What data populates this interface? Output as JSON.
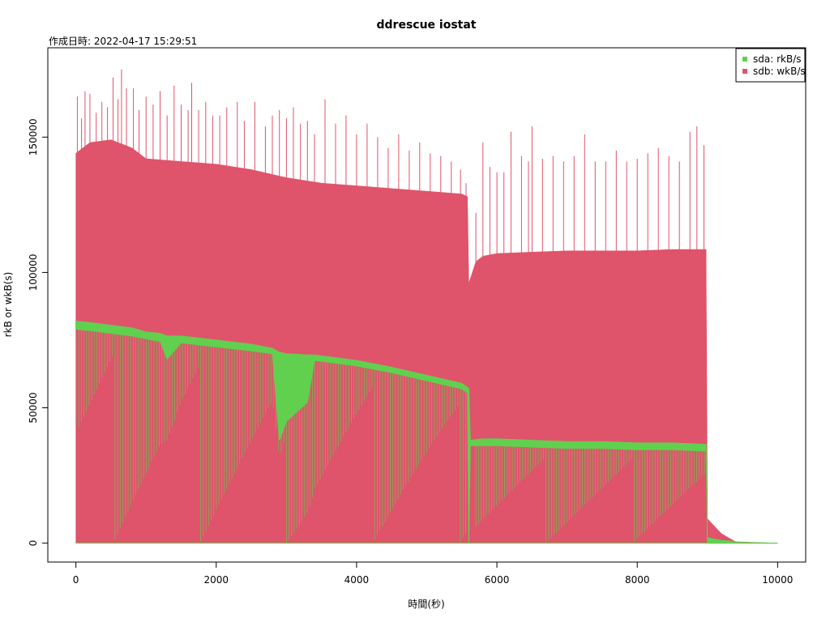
{
  "chart_data": {
    "type": "area",
    "title": "ddrescue iostat",
    "subtitle": "作成日時: 2022-04-17 15:29:51",
    "xlabel": "時間(秒)",
    "ylabel": "rkB or wkB(s)",
    "xlim": [
      -400,
      10400
    ],
    "ylim": [
      -7000,
      183000
    ],
    "x_ticks": [
      0,
      2000,
      4000,
      6000,
      8000,
      10000
    ],
    "y_ticks": [
      0,
      50000,
      100000,
      150000
    ],
    "grid": false,
    "legend_position": "top-right",
    "series": [
      {
        "name": "sda: rkB/s",
        "color": "#61D04F",
        "x": [
          0,
          200,
          500,
          800,
          1000,
          1200,
          1300,
          1500,
          2000,
          2500,
          2800,
          2900,
          3000,
          3300,
          3400,
          4000,
          4500,
          5000,
          5500,
          5580,
          5600,
          5620,
          5800,
          6000,
          6500,
          7000,
          7500,
          8000,
          8500,
          8980,
          9000,
          9200,
          9300,
          9400,
          10000
        ],
        "envelope_top": [
          82000,
          81500,
          80500,
          79500,
          78000,
          77500,
          76500,
          76500,
          75000,
          73500,
          72000,
          70500,
          70000,
          69500,
          69500,
          67500,
          65000,
          62000,
          59000,
          57500,
          57000,
          38000,
          38500,
          38500,
          38000,
          37500,
          37500,
          37000,
          37000,
          36500,
          2000,
          1000,
          800,
          300,
          0
        ],
        "envelope_bottom": [
          79000,
          78500,
          77500,
          76500,
          75500,
          74500,
          68000,
          74000,
          72500,
          71000,
          70000,
          38000,
          45000,
          52000,
          67500,
          65500,
          63000,
          60000,
          57000,
          55500,
          0,
          36000,
          36000,
          36000,
          35500,
          35000,
          35000,
          34500,
          34500,
          34000,
          0,
          0,
          0,
          0,
          0
        ]
      },
      {
        "name": "sdb: wkB/s",
        "color": "#DF536B",
        "x": [
          0,
          200,
          500,
          800,
          1000,
          1500,
          2000,
          2500,
          3000,
          3500,
          4000,
          4500,
          5000,
          5500,
          5580,
          5600,
          5700,
          5800,
          6000,
          6500,
          7000,
          7500,
          8000,
          8500,
          8980,
          9000,
          9200,
          9300,
          9400,
          10000
        ],
        "envelope_top": [
          144000,
          148000,
          149000,
          146000,
          142000,
          141000,
          140000,
          138000,
          135000,
          133000,
          132000,
          131000,
          130000,
          129000,
          128000,
          96000,
          104000,
          106000,
          107000,
          107500,
          108000,
          108000,
          108000,
          108500,
          108500,
          9000,
          3500,
          2000,
          500,
          0
        ],
        "envelope_bottom": [
          0,
          0,
          0,
          0,
          0,
          0,
          0,
          0,
          0,
          0,
          0,
          0,
          0,
          0,
          0,
          0,
          0,
          0,
          0,
          0,
          0,
          0,
          0,
          0,
          0,
          0,
          0,
          0,
          0,
          0
        ],
        "spike_peaks": [
          [
            20,
            165000
          ],
          [
            80,
            157000
          ],
          [
            130,
            167000
          ],
          [
            200,
            166000
          ],
          [
            290,
            159000
          ],
          [
            370,
            163000
          ],
          [
            450,
            161000
          ],
          [
            530,
            172000
          ],
          [
            600,
            164000
          ],
          [
            650,
            175000
          ],
          [
            720,
            168000
          ],
          [
            820,
            168000
          ],
          [
            900,
            160000
          ],
          [
            1000,
            165000
          ],
          [
            1100,
            162000
          ],
          [
            1200,
            167000
          ],
          [
            1300,
            158000
          ],
          [
            1400,
            169000
          ],
          [
            1500,
            162000
          ],
          [
            1600,
            160000
          ],
          [
            1650,
            170000
          ],
          [
            1750,
            160000
          ],
          [
            1850,
            163000
          ],
          [
            1950,
            158000
          ],
          [
            2050,
            158000
          ],
          [
            2150,
            161000
          ],
          [
            2300,
            163000
          ],
          [
            2400,
            156000
          ],
          [
            2550,
            163000
          ],
          [
            2700,
            154000
          ],
          [
            2800,
            158000
          ],
          [
            2900,
            160000
          ],
          [
            3000,
            157000
          ],
          [
            3100,
            161000
          ],
          [
            3200,
            155000
          ],
          [
            3300,
            156000
          ],
          [
            3400,
            151000
          ],
          [
            3550,
            164000
          ],
          [
            3700,
            155000
          ],
          [
            3850,
            158000
          ],
          [
            4000,
            151000
          ],
          [
            4150,
            155000
          ],
          [
            4300,
            150000
          ],
          [
            4450,
            146000
          ],
          [
            4600,
            151000
          ],
          [
            4750,
            145000
          ],
          [
            4900,
            148000
          ],
          [
            5050,
            144000
          ],
          [
            5200,
            143000
          ],
          [
            5350,
            141000
          ],
          [
            5480,
            138000
          ],
          [
            5560,
            133000
          ],
          [
            5700,
            122000
          ],
          [
            5800,
            148000
          ],
          [
            5900,
            139000
          ],
          [
            6000,
            137000
          ],
          [
            6100,
            137000
          ],
          [
            6200,
            152000
          ],
          [
            6350,
            143000
          ],
          [
            6450,
            141000
          ],
          [
            6500,
            154000
          ],
          [
            6650,
            142000
          ],
          [
            6800,
            143000
          ],
          [
            6950,
            141000
          ],
          [
            7100,
            143000
          ],
          [
            7250,
            151000
          ],
          [
            7400,
            141000
          ],
          [
            7550,
            141000
          ],
          [
            7700,
            145000
          ],
          [
            7850,
            141000
          ],
          [
            8000,
            142000
          ],
          [
            8150,
            144000
          ],
          [
            8300,
            146000
          ],
          [
            8450,
            143000
          ],
          [
            8600,
            141000
          ],
          [
            8750,
            152000
          ],
          [
            8850,
            154000
          ],
          [
            8950,
            147000
          ]
        ]
      }
    ]
  },
  "layout_colors": {
    "axis": "#000000",
    "background": "#ffffff"
  }
}
